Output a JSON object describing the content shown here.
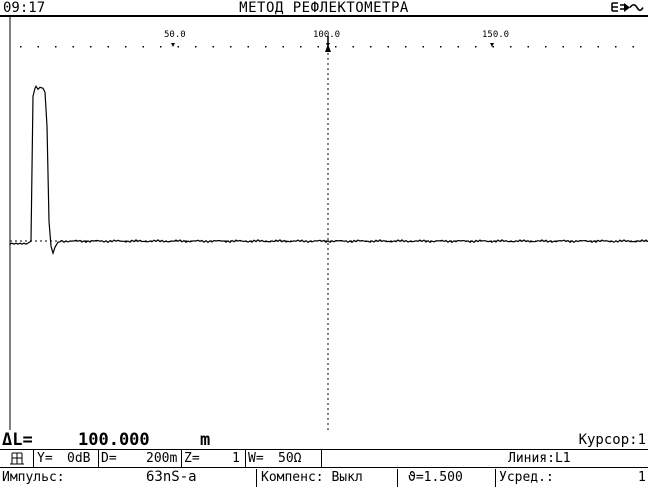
{
  "header": {
    "time": "09:17",
    "title": "МЕТОД РЕФЛЕКТОМЕТРА",
    "battery_icon": "battery-plug-icon",
    "battery_text": "ℇ⊐▶⏦"
  },
  "scale": {
    "labels": [
      "50.0",
      "100.0",
      "150.0"
    ],
    "marker_value": "100.0"
  },
  "trace": {
    "description_values": "reflectogram: pulse at start, then baseline",
    "baseline_level": 0.55,
    "pulse_peak_level": 0.175
  },
  "measure": {
    "delta_label": "ΔL=",
    "delta_value": "100.000",
    "delta_unit": "m",
    "cursor": "Курсор:1"
  },
  "status_row1": {
    "icon": "grid-icon",
    "y_label": "Y=",
    "y_value": "0dB",
    "d_label": "D=",
    "d_value": "200m",
    "z_label": "Z=",
    "z_value": "1",
    "w_label": "W=",
    "w_value": "50Ω",
    "line": "Линия:L1"
  },
  "status_row2": {
    "pulse_label": "Импульс:",
    "pulse_value": "63nS-a",
    "comp": "Компенс: Выкл",
    "gamma": "ϑ=1.500",
    "avg_label": "Усред.:",
    "avg_value": "1"
  }
}
